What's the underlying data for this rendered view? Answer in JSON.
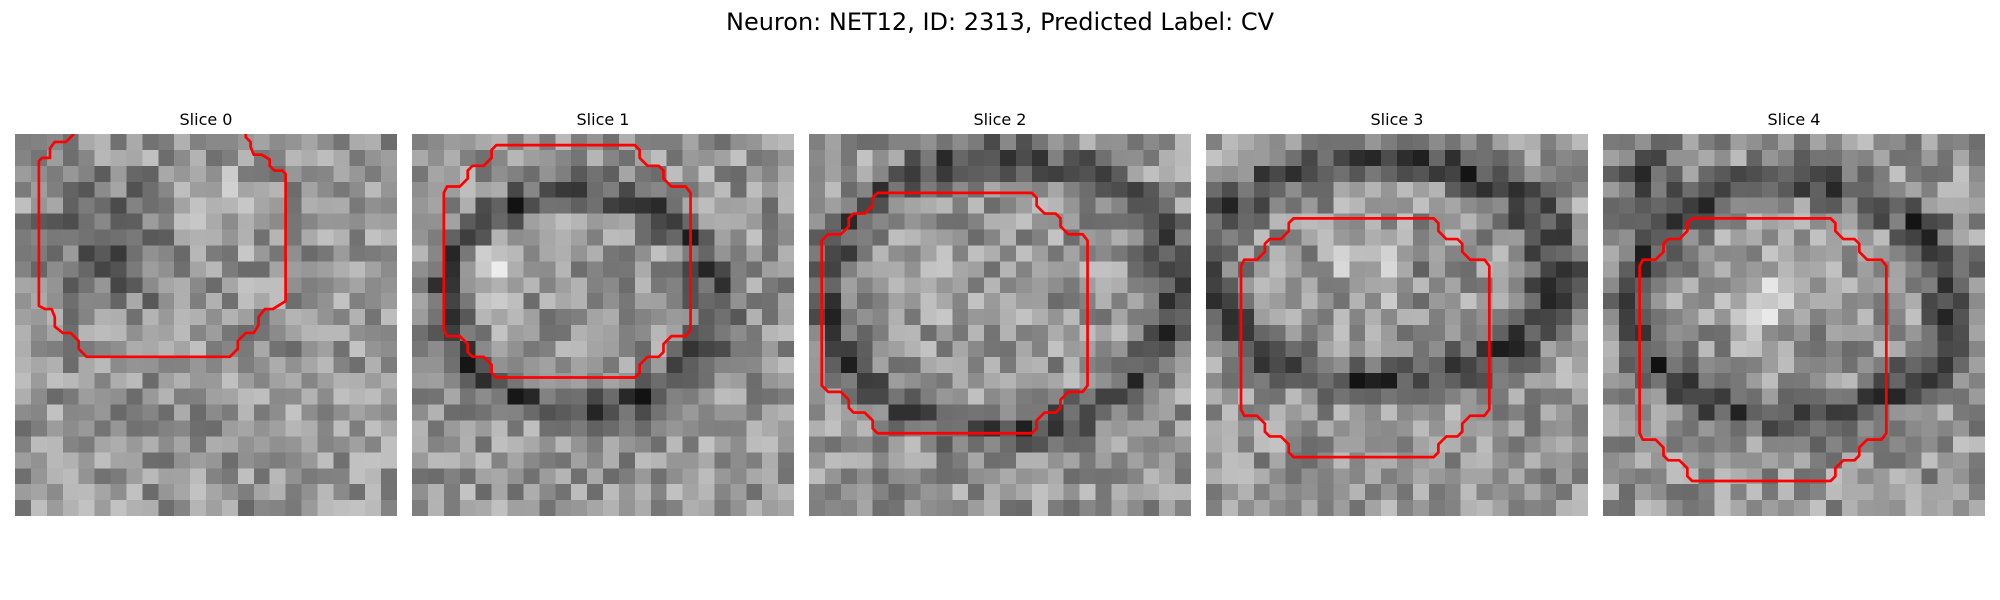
{
  "figure": {
    "title": "Neuron: NET12, ID: 2313, Predicted Label: CV"
  },
  "panels": [
    {
      "title": "Slice 0",
      "seed": 11,
      "blobs": [
        {
          "cx": 6,
          "cy": 7,
          "r": 6,
          "v": -70
        },
        {
          "cx": 12,
          "cy": 5,
          "r": 4,
          "v": 35
        },
        {
          "cx": 16,
          "cy": 26,
          "r": 4,
          "v": -40
        }
      ]
    },
    {
      "title": "Slice 1",
      "seed": 23,
      "ring": {
        "cx": 10.5,
        "cy": 10.5,
        "rx": 8.5,
        "ry": 6.8,
        "w": 1.6,
        "v": -90
      },
      "blobs": [
        {
          "cx": 5.5,
          "cy": 8,
          "r": 3,
          "v": 80
        }
      ]
    },
    {
      "title": "Slice 2",
      "seed": 37,
      "ring": {
        "cx": 12,
        "cy": 10,
        "rx": 11,
        "ry": 8.5,
        "w": 1.8,
        "v": -85
      },
      "blobs": [
        {
          "cx": 8,
          "cy": 9,
          "r": 3,
          "v": 40
        }
      ]
    },
    {
      "title": "Slice 3",
      "seed": 51,
      "ring": {
        "cx": 11,
        "cy": 8.5,
        "rx": 11,
        "ry": 7,
        "w": 1.8,
        "v": -90
      },
      "blobs": [
        {
          "cx": 10.5,
          "cy": 8,
          "r": 3.5,
          "v": 55
        },
        {
          "cx": 13.5,
          "cy": 8,
          "r": 1.2,
          "v": -90
        }
      ]
    },
    {
      "title": "Slice 4",
      "seed": 67,
      "ring": {
        "cx": 12,
        "cy": 10.5,
        "rx": 10,
        "ry": 7.5,
        "w": 1.8,
        "v": -90
      },
      "blobs": [
        {
          "cx": 2.5,
          "cy": 3,
          "r": 3.5,
          "v": -80
        },
        {
          "cx": 10,
          "cy": 10.5,
          "r": 3.5,
          "v": 60
        }
      ]
    }
  ],
  "contour_color": "#ff0000"
}
